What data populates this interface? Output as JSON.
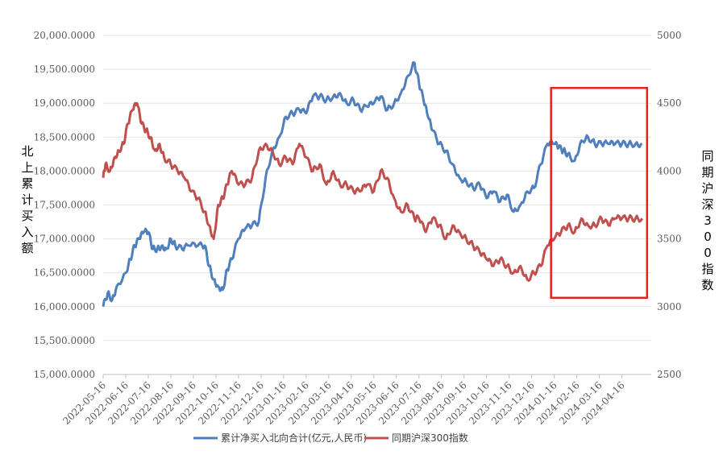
{
  "chart_data": {
    "type": "line",
    "title": "",
    "y_left_label": "北上累计买入额",
    "y_right_label": "同期沪深300指数",
    "ylim_left": [
      15000,
      20000
    ],
    "ylim_right": [
      2500,
      5000
    ],
    "y_left_ticks": [
      "15,000.0000",
      "15,500.0000",
      "16,000.0000",
      "16,500.0000",
      "17,000.0000",
      "17,500.0000",
      "18,000.0000",
      "18,500.0000",
      "19,000.0000",
      "19,500.0000",
      "20,000.0000"
    ],
    "y_right_ticks": [
      "2500",
      "3000",
      "3500",
      "4000",
      "4500",
      "5000"
    ],
    "x_ticks": [
      "2022-05-16",
      "2022-06-16",
      "2022-07-16",
      "2022-08-16",
      "2022-09-16",
      "2022-10-16",
      "2022-11-16",
      "2022-12-16",
      "2023-01-16",
      "2023-02-16",
      "2023-03-16",
      "2023-04-16",
      "2023-05-16",
      "2023-06-16",
      "2023-07-16",
      "2023-08-16",
      "2023-09-16",
      "2023-10-16",
      "2023-11-16",
      "2023-12-16",
      "2024-01-16",
      "2024-02-16",
      "2024-03-16",
      "2024-04-16"
    ],
    "series": [
      {
        "name": "累计净买入北向合计(亿元,人民币)",
        "axis": "left",
        "color": "#4f7fbd",
        "x": [
          0,
          0.2,
          0.4,
          0.6,
          1.0,
          1.2,
          1.4,
          1.6,
          1.8,
          2.0,
          2.2,
          2.4,
          2.6,
          2.8,
          3.0,
          3.2,
          3.5,
          3.8,
          4.2,
          4.5,
          4.7,
          4.9,
          5.1,
          5.3,
          5.5,
          5.7,
          6.0,
          6.3,
          6.6,
          6.9,
          7.2,
          7.5,
          7.8,
          8.1,
          8.4,
          8.7,
          9.0,
          9.3,
          9.6,
          9.9,
          10.2,
          10.5,
          10.8,
          11.1,
          11.4,
          11.7,
          12.0,
          12.3,
          12.6,
          12.9,
          13.2,
          13.5,
          13.8,
          14.0,
          14.2,
          14.4,
          14.6,
          14.9,
          15.2,
          15.5,
          15.8,
          16.1,
          16.4,
          16.7,
          17.0,
          17.3,
          17.6,
          17.9,
          18.2,
          18.5,
          18.8,
          19.1,
          19.4,
          19.7,
          20.0,
          20.2,
          20.4,
          20.6,
          20.9,
          21.2,
          21.5,
          21.8,
          22.1,
          22.4,
          22.7,
          23.0,
          23.3,
          23.6,
          23.9
        ],
        "values": [
          16000,
          16200,
          16100,
          16300,
          16500,
          16700,
          16900,
          17000,
          17100,
          17100,
          16850,
          16850,
          16900,
          16850,
          17000,
          16900,
          16850,
          16900,
          16900,
          16900,
          16600,
          16400,
          16300,
          16250,
          16550,
          16700,
          17000,
          17150,
          17200,
          17250,
          17900,
          18300,
          18500,
          18800,
          18850,
          18900,
          18850,
          19100,
          19100,
          19050,
          19100,
          19150,
          19000,
          19050,
          18900,
          18950,
          19000,
          19100,
          18900,
          19000,
          19150,
          19400,
          19600,
          19300,
          19050,
          18800,
          18600,
          18400,
          18300,
          18100,
          17900,
          17850,
          17750,
          17800,
          17600,
          17700,
          17550,
          17650,
          17400,
          17500,
          17700,
          17750,
          18100,
          18400,
          18400,
          18350,
          18300,
          18250,
          18150,
          18450,
          18500,
          18400,
          18400,
          18400,
          18400,
          18400,
          18400,
          18400,
          18400
        ]
      },
      {
        "name": "同期沪深300指数",
        "axis": "right",
        "color": "#c0504d",
        "x": [
          0,
          0.1,
          0.3,
          0.5,
          0.7,
          0.9,
          1.1,
          1.3,
          1.5,
          1.7,
          1.9,
          2.1,
          2.3,
          2.5,
          2.7,
          3.0,
          3.3,
          3.6,
          3.9,
          4.2,
          4.5,
          4.7,
          4.9,
          5.1,
          5.3,
          5.5,
          5.7,
          6.0,
          6.3,
          6.6,
          6.9,
          7.2,
          7.5,
          7.8,
          8.1,
          8.4,
          8.7,
          9.0,
          9.3,
          9.6,
          9.9,
          10.2,
          10.5,
          10.8,
          11.1,
          11.4,
          11.7,
          12.0,
          12.3,
          12.6,
          12.9,
          13.2,
          13.5,
          13.8,
          14.0,
          14.3,
          14.6,
          14.9,
          15.2,
          15.5,
          15.8,
          16.1,
          16.4,
          16.7,
          17.0,
          17.3,
          17.6,
          17.9,
          18.2,
          18.5,
          18.8,
          19.1,
          19.4,
          19.7,
          20.0,
          20.3,
          20.6,
          20.9,
          21.2,
          21.5,
          21.8,
          22.1,
          22.4,
          22.7,
          23.0,
          23.3,
          23.6,
          23.9
        ],
        "values": [
          3950,
          4050,
          4000,
          4100,
          4150,
          4200,
          4350,
          4450,
          4500,
          4350,
          4300,
          4250,
          4150,
          4200,
          4100,
          4050,
          4000,
          3950,
          3850,
          3800,
          3700,
          3600,
          3500,
          3750,
          3800,
          3900,
          4000,
          3900,
          3900,
          3950,
          4150,
          4200,
          4150,
          4050,
          4100,
          4050,
          4200,
          4100,
          4000,
          4050,
          3900,
          4000,
          3900,
          3900,
          3850,
          3850,
          3900,
          3850,
          4000,
          3950,
          3800,
          3700,
          3750,
          3650,
          3650,
          3550,
          3650,
          3600,
          3500,
          3600,
          3550,
          3500,
          3450,
          3400,
          3350,
          3300,
          3350,
          3300,
          3250,
          3300,
          3200,
          3250,
          3300,
          3450,
          3500,
          3550,
          3600,
          3550,
          3650,
          3600,
          3600,
          3650,
          3600,
          3650,
          3650,
          3650,
          3650,
          3650
        ]
      }
    ],
    "annotation": {
      "shape": "red-rectangle",
      "x_range": [
        20.0,
        23.9
      ],
      "y_range_left": [
        16000,
        19000
      ]
    }
  }
}
